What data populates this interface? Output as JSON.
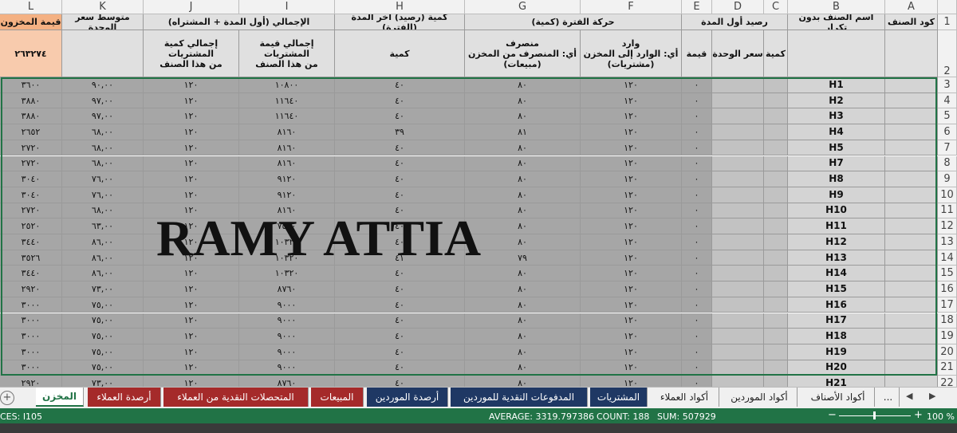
{
  "sheet": {
    "column_letters": [
      "A",
      "B",
      "C",
      "D",
      "E",
      "F",
      "G",
      "H",
      "I",
      "J",
      "K",
      "L"
    ],
    "row_numbers": [
      "1",
      "2",
      "3",
      "4",
      "5",
      "6",
      "7",
      "8",
      "9",
      "10",
      "11",
      "12",
      "13",
      "14",
      "15",
      "16",
      "17",
      "18",
      "19",
      "20",
      "21",
      "22"
    ],
    "header_row1": {
      "A": "كود الصنف",
      "B": "اسم الصنف بدون تكرار",
      "CE": "رصيد أول المدة",
      "FG": "حركة الفترة (كمية)",
      "H": "كمية (رصيد) آخر المدة (الفترة)",
      "IJ": "الإجمالي (أول المدة + المشتراه)",
      "K": "متوسط سعر الوحدة",
      "L": "قيمة المخزون"
    },
    "header_row2": {
      "C": "كمية",
      "D": "سعر الوحدة",
      "E": "قيمة",
      "F": "وارد\nأي: الوارد إلى المخزن\n(مشتريات)",
      "G": "منصرف\nأي: المنصرف من المخزن\n(مبيعات)",
      "H": "كمية",
      "I": "إجمالي قيمة المشتريات\nمن هذا الصنف",
      "J": "إجمالي كمية المشتريات\nمن هذا الصنف",
      "L": "٢٦٣٢٧٤"
    },
    "rows": [
      [
        "H1",
        "٠",
        "١٢٠",
        "٨٠",
        "٤٠",
        "١٠٨٠٠",
        "١٢٠",
        "٩٠,٠٠",
        "٣٦٠٠"
      ],
      [
        "H2",
        "٠",
        "١٢٠",
        "٨٠",
        "٤٠",
        "١١٦٤٠",
        "١٢٠",
        "٩٧,٠٠",
        "٣٨٨٠"
      ],
      [
        "H3",
        "٠",
        "١٢٠",
        "٨٠",
        "٤٠",
        "١١٦٤٠",
        "١٢٠",
        "٩٧,٠٠",
        "٣٨٨٠"
      ],
      [
        "H4",
        "٠",
        "١٢٠",
        "٨١",
        "٣٩",
        "٨١٦٠",
        "١٢٠",
        "٦٨,٠٠",
        "٢٦٥٢"
      ],
      [
        "H5",
        "٠",
        "١٢٠",
        "٨٠",
        "٤٠",
        "٨١٦٠",
        "١٢٠",
        "٦٨,٠٠",
        "٢٧٢٠"
      ],
      [
        "H7",
        "٠",
        "١٢٠",
        "٨٠",
        "٤٠",
        "٨١٦٠",
        "١٢٠",
        "٦٨,٠٠",
        "٢٧٢٠"
      ],
      [
        "H8",
        "٠",
        "١٢٠",
        "٨٠",
        "٤٠",
        "٩١٢٠",
        "١٢٠",
        "٧٦,٠٠",
        "٣٠٤٠"
      ],
      [
        "H9",
        "٠",
        "١٢٠",
        "٨٠",
        "٤٠",
        "٩١٢٠",
        "١٢٠",
        "٧٦,٠٠",
        "٣٠٤٠"
      ],
      [
        "H10",
        "٠",
        "١٢٠",
        "٨٠",
        "٤٠",
        "٨١٦٠",
        "١٢٠",
        "٦٨,٠٠",
        "٢٧٢٠"
      ],
      [
        "H11",
        "٠",
        "١٢٠",
        "٨٠",
        "٤٠",
        "٧٥٦٠",
        "١٢٠",
        "٦٣,٠٠",
        "٢٥٢٠"
      ],
      [
        "H12",
        "٠",
        "١٢٠",
        "٨٠",
        "٤٠",
        "١٠٣٢٠",
        "١٢٠",
        "٨٦,٠٠",
        "٣٤٤٠"
      ],
      [
        "H13",
        "٠",
        "١٢٠",
        "٧٩",
        "٤١",
        "١٠٣٢٠",
        "١٢٠",
        "٨٦,٠٠",
        "٣٥٢٦"
      ],
      [
        "H14",
        "٠",
        "١٢٠",
        "٨٠",
        "٤٠",
        "١٠٣٢٠",
        "١٢٠",
        "٨٦,٠٠",
        "٣٤٤٠"
      ],
      [
        "H15",
        "٠",
        "١٢٠",
        "٨٠",
        "٤٠",
        "٨٧٦٠",
        "١٢٠",
        "٧٣,٠٠",
        "٢٩٢٠"
      ],
      [
        "H16",
        "٠",
        "١٢٠",
        "٨٠",
        "٤٠",
        "٩٠٠٠",
        "١٢٠",
        "٧٥,٠٠",
        "٣٠٠٠"
      ],
      [
        "H17",
        "٠",
        "١٢٠",
        "٨٠",
        "٤٠",
        "٩٠٠٠",
        "١٢٠",
        "٧٥,٠٠",
        "٣٠٠٠"
      ],
      [
        "H18",
        "٠",
        "١٢٠",
        "٨٠",
        "٤٠",
        "٩٠٠٠",
        "١٢٠",
        "٧٥,٠٠",
        "٣٠٠٠"
      ],
      [
        "H19",
        "٠",
        "١٢٠",
        "٨٠",
        "٤٠",
        "٩٠٠٠",
        "١٢٠",
        "٧٥,٠٠",
        "٣٠٠٠"
      ],
      [
        "H20",
        "٠",
        "١٢٠",
        "٨٠",
        "٤٠",
        "٩٠٠٠",
        "١٢٠",
        "٧٥,٠٠",
        "٣٠٠٠"
      ],
      [
        "H21",
        "٠",
        "١٢٠",
        "٨٠",
        "٤٠",
        "٨٧٦٠",
        "١٢٠",
        "٧٣,٠٠",
        "٢٩٢٠"
      ]
    ]
  },
  "watermark": "RAMY ATTIA",
  "tabs": [
    "المخزن",
    "أرصدة العملاء",
    "المتحصلات النقدية من العملاء",
    "المبيعات",
    "أرصدة الموردين",
    "المدفوعات النقدية للموردين",
    "المشتريات",
    "أكواد العملاء",
    "أكواد الموردين",
    "أكواد الأصناف",
    "..."
  ],
  "status": {
    "mode": "CES: I105",
    "average": "AVERAGE: 3319.797386",
    "count": "COUNT: 188",
    "sum": "SUM: 507929",
    "zoom": "100 %"
  }
}
